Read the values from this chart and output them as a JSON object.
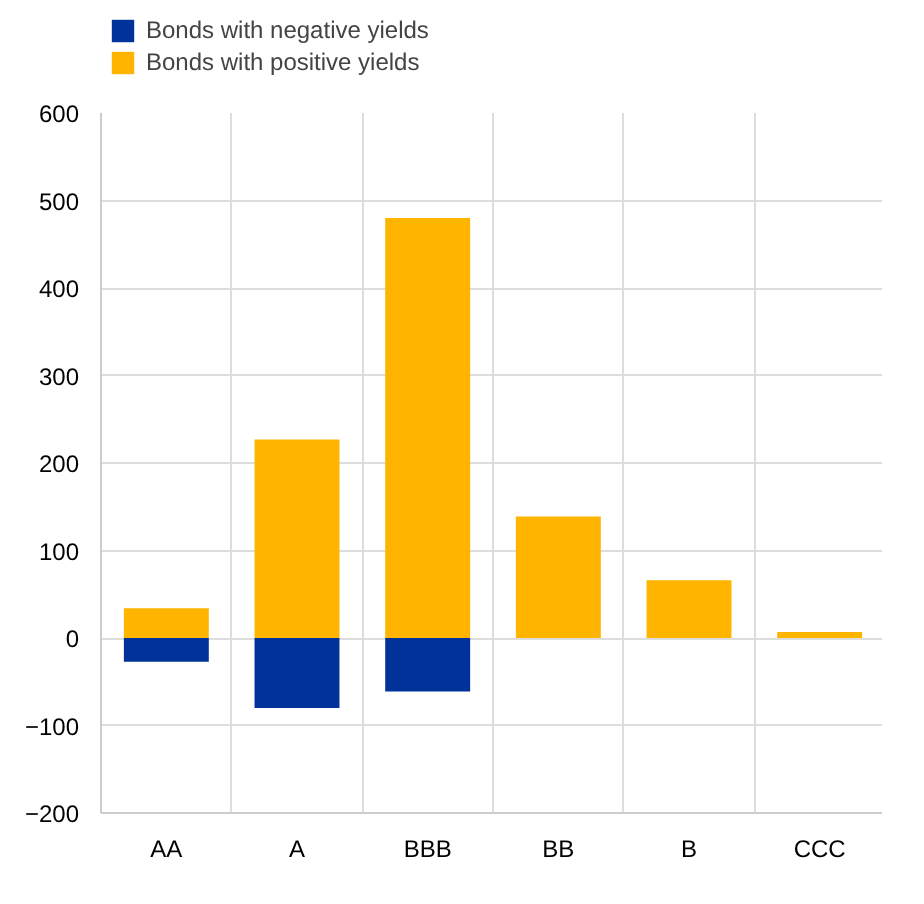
{
  "chart_data": {
    "type": "bar",
    "stacked": true,
    "categories": [
      "AA",
      "A",
      "BBB",
      "BB",
      "B",
      "CCC"
    ],
    "series": [
      {
        "name": "Bonds with negative yields",
        "color": "#003299",
        "values": [
          -27,
          -80,
          -61,
          null,
          null,
          null
        ]
      },
      {
        "name": "Bonds with positive yields",
        "color": "#ffb400",
        "values": [
          34,
          227,
          480,
          139,
          66,
          7
        ]
      }
    ],
    "ylim": [
      -200,
      600
    ],
    "yticks": [
      -200,
      -100,
      0,
      100,
      200,
      300,
      400,
      500,
      600
    ],
    "grid": true,
    "legend": "top left"
  }
}
